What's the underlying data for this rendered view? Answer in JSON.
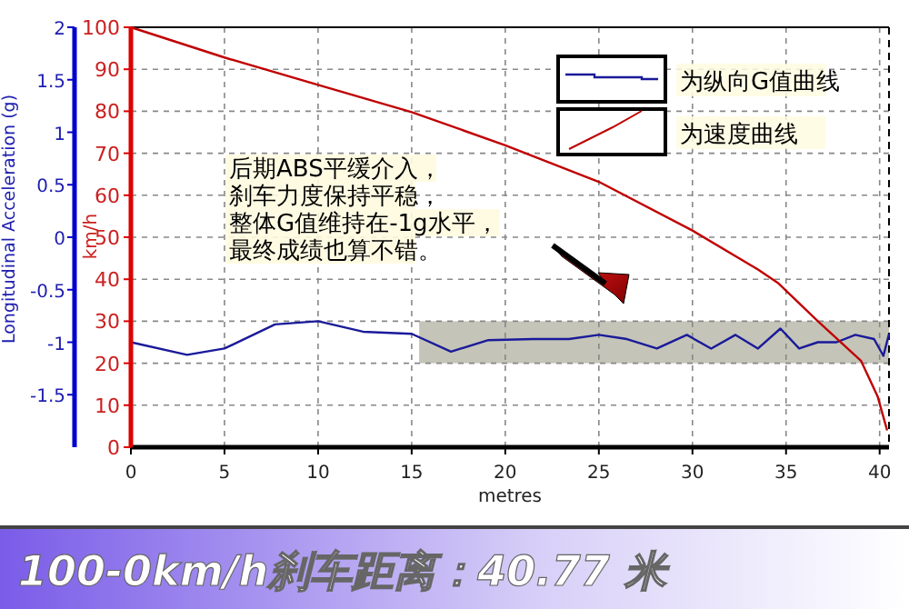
{
  "chart_data": {
    "type": "line",
    "title": "100-0km/h刹车距离：40.77 米",
    "xlabel": "metres",
    "ylabel": "Longitudinal Acceleration (g)",
    "y2label": "km/h",
    "xlim": [
      0,
      40.5
    ],
    "xticks": [
      0,
      5,
      10,
      15,
      20,
      25,
      30,
      35,
      40
    ],
    "ylim": [
      -2,
      2
    ],
    "yticks": [
      2,
      1.5,
      1,
      0.5,
      0,
      -0.5,
      -1,
      -1.5
    ],
    "y2lim": [
      0,
      100
    ],
    "y2ticks": [
      0,
      10,
      20,
      30,
      40,
      50,
      60,
      70,
      80,
      90,
      100
    ],
    "grid": true,
    "legend": "top right",
    "annotations": [
      "后期ABS平缓介入，",
      "刹车力度保持平稳，",
      "整体G值维持在-1g水平，",
      "最终成绩也算不错。"
    ],
    "bands": [
      {
        "axis": "x",
        "from": 15.4,
        "to": 40.5,
        "color": "#c4c4b8"
      }
    ],
    "series": [
      {
        "name": "为纵向G值曲线",
        "color": "#1a1a9a",
        "axis": "y",
        "x": [
          0,
          3.0,
          5.0,
          7.7,
          10.0,
          12.4,
          15.0,
          17.1,
          19.1,
          21.5,
          23.4,
          25.0,
          26.5,
          28.1,
          29.7,
          31.0,
          32.3,
          33.5,
          34.7,
          35.7,
          36.7,
          37.7,
          38.7,
          39.7,
          40.2,
          40.5
        ],
        "values": [
          -1.0,
          -1.12,
          -1.06,
          -0.83,
          -0.8,
          -0.9,
          -0.92,
          -1.09,
          -0.98,
          -0.97,
          -0.97,
          -0.93,
          -0.97,
          -1.06,
          -0.93,
          -1.06,
          -0.93,
          -1.06,
          -0.87,
          -1.06,
          -1.0,
          -1.0,
          -0.93,
          -0.97,
          -1.13,
          -0.92
        ]
      },
      {
        "name": "为速度曲线",
        "color": "#c00000",
        "axis": "y2",
        "x": [
          0,
          5,
          10,
          15,
          20,
          25,
          30,
          33.5,
          34.6,
          36.7,
          39.0,
          39.9,
          40.4
        ],
        "values": [
          100,
          92.8,
          86.3,
          79.8,
          71.9,
          63.2,
          51.6,
          42.3,
          39,
          30,
          20.6,
          12,
          4
        ]
      }
    ]
  }
}
